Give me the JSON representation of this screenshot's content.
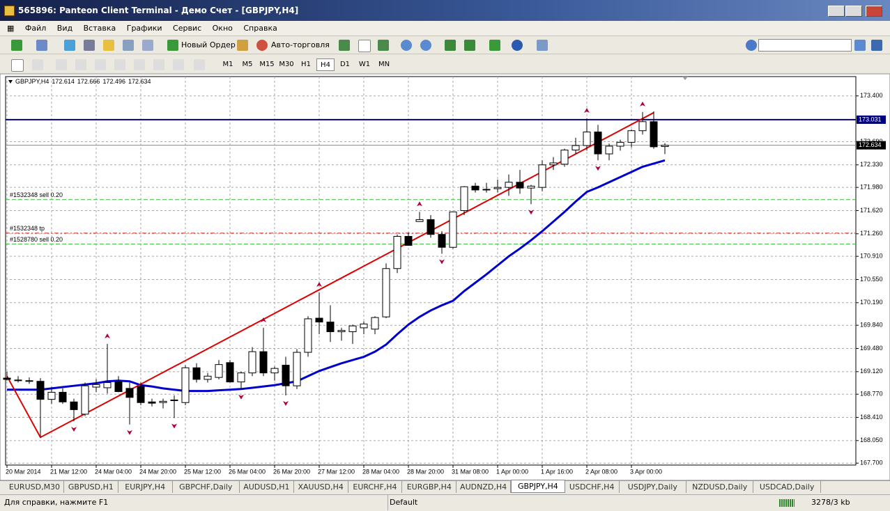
{
  "window": {
    "title": "565896: Panteon Client Terminal - Демо Счет - [GBPJPY,H4]"
  },
  "menu": [
    "Файл",
    "Вид",
    "Вставка",
    "Графики",
    "Сервис",
    "Окно",
    "Справка"
  ],
  "toolbar": {
    "new_order": "Новый Ордер",
    "autotrading": "Авто-торговля",
    "timeframes": [
      "M1",
      "M5",
      "M15",
      "M30",
      "H1",
      "H4",
      "D1",
      "W1",
      "MN"
    ],
    "active_timeframe": 5
  },
  "chart_data": {
    "type": "candlestick",
    "symbol": "GBPJPY,H4",
    "categories": [
      "20 Mar 2014",
      null,
      null,
      null,
      "21 Mar 12:00",
      null,
      null,
      null,
      "24 Mar 04:00",
      null,
      null,
      null,
      "24 Mar 20:00",
      null,
      null,
      null,
      "25 Mar 12:00",
      null,
      null,
      null,
      "26 Mar 04:00",
      null,
      null,
      null,
      "26 Mar 20:00",
      null,
      null,
      null,
      "27 Mar 12:00",
      null,
      null,
      null,
      "28 Mar 04:00",
      null,
      null,
      null,
      "28 Mar 20:00",
      null,
      null,
      null,
      "31 Mar 08:00",
      null,
      null,
      null,
      "1 Apr 00:00",
      null,
      null,
      null,
      "1 Apr 16:00",
      null,
      null,
      null,
      "2 Apr 08:00",
      null,
      null,
      null,
      "3 Apr 00:00",
      null,
      null,
      null
    ],
    "open": [
      169.02,
      168.99,
      168.98,
      168.97,
      168.69,
      168.8,
      168.65,
      168.46,
      168.88,
      168.87,
      168.96,
      168.86,
      168.89,
      168.65,
      168.64,
      168.67,
      168.64,
      169.18,
      169.0,
      169.03,
      169.26,
      168.96,
      169.1,
      169.43,
      169.1,
      169.22,
      168.9,
      169.42,
      169.95,
      169.89,
      169.74,
      169.74,
      169.8,
      169.78,
      169.97,
      170.72,
      171.22,
      171.45,
      171.48,
      171.25,
      171.05,
      171.62,
      172.0,
      171.94,
      171.96,
      171.98,
      172.06,
      171.97,
      171.98,
      172.33,
      172.34,
      172.56,
      172.63,
      172.84,
      172.5,
      172.62,
      172.68,
      172.86,
      173.0,
      172.614
    ],
    "high": [
      169.12,
      169.05,
      169.03,
      169.02,
      168.88,
      168.86,
      168.7,
      168.95,
      169.0,
      169.55,
      169.05,
      168.95,
      168.95,
      168.7,
      168.7,
      168.75,
      169.22,
      169.25,
      169.1,
      169.3,
      169.3,
      169.12,
      169.5,
      169.8,
      169.2,
      169.35,
      169.47,
      169.98,
      170.35,
      170.15,
      169.8,
      169.85,
      169.9,
      169.98,
      170.8,
      171.25,
      171.28,
      171.6,
      171.55,
      171.3,
      171.6,
      172.0,
      172.05,
      172.05,
      172.1,
      172.18,
      172.25,
      172.02,
      172.4,
      172.45,
      172.58,
      172.75,
      173.05,
      172.95,
      172.66,
      172.72,
      172.88,
      173.15,
      173.16,
      172.666
    ],
    "low": [
      168.98,
      168.95,
      168.93,
      168.1,
      168.62,
      168.62,
      168.35,
      168.43,
      168.8,
      168.78,
      168.8,
      168.3,
      168.6,
      168.58,
      168.55,
      168.4,
      168.6,
      168.95,
      168.95,
      169.0,
      168.95,
      168.85,
      169.05,
      169.05,
      168.98,
      168.75,
      168.85,
      169.35,
      169.7,
      169.58,
      169.6,
      169.55,
      169.7,
      169.7,
      169.95,
      170.65,
      171.08,
      171.45,
      171.2,
      170.95,
      171.03,
      171.55,
      171.9,
      171.9,
      171.9,
      171.85,
      171.88,
      171.72,
      171.92,
      172.25,
      172.3,
      172.5,
      172.55,
      172.4,
      172.4,
      172.55,
      172.6,
      172.8,
      172.58,
      172.496
    ],
    "close": [
      169.0,
      168.98,
      168.97,
      168.69,
      168.8,
      168.65,
      168.53,
      168.9,
      168.92,
      168.95,
      168.81,
      168.72,
      168.64,
      168.63,
      168.66,
      168.68,
      169.18,
      169.0,
      169.05,
      169.23,
      168.96,
      169.1,
      169.43,
      169.1,
      169.17,
      168.9,
      169.42,
      169.94,
      169.89,
      169.74,
      169.76,
      169.83,
      169.86,
      169.96,
      170.72,
      171.22,
      171.08,
      171.48,
      171.25,
      171.05,
      171.6,
      171.99,
      171.94,
      171.95,
      171.98,
      172.06,
      171.97,
      172.0,
      172.33,
      172.36,
      172.56,
      172.63,
      172.84,
      172.5,
      172.62,
      172.68,
      172.86,
      173.0,
      172.61,
      172.634
    ],
    "ma": {
      "color": "#0000cc",
      "values": [
        168.84,
        168.84,
        168.84,
        168.84,
        168.86,
        168.88,
        168.9,
        168.92,
        168.94,
        168.97,
        168.98,
        168.97,
        168.91,
        168.89,
        168.86,
        168.84,
        168.82,
        168.82,
        168.82,
        168.83,
        168.84,
        168.85,
        168.87,
        168.89,
        168.91,
        168.94,
        168.97,
        169.05,
        169.13,
        169.19,
        169.25,
        169.3,
        169.35,
        169.43,
        169.54,
        169.7,
        169.85,
        169.97,
        170.07,
        170.15,
        170.22,
        170.37,
        170.5,
        170.63,
        170.77,
        170.91,
        171.03,
        171.16,
        171.3,
        171.45,
        171.6,
        171.76,
        171.91,
        171.98,
        172.06,
        172.14,
        172.22,
        172.3,
        172.35,
        172.4
      ]
    },
    "lines": [
      {
        "color": "#dd0000",
        "x": [
          0,
          3,
          58
        ],
        "values": [
          169.05,
          168.1,
          173.14
        ]
      }
    ],
    "fractals_up": [
      9,
      23,
      28,
      37,
      52,
      57
    ],
    "fractals_down": [
      6,
      11,
      15,
      21,
      25,
      39,
      47,
      53
    ],
    "fractal_color": "#b0003a",
    "hline": {
      "value": 173.031,
      "color": "#000080"
    },
    "levels": [
      {
        "label": "#1532348 sell 0.20",
        "value": 171.79,
        "color": "#33bb33",
        "style": "dashed"
      },
      {
        "label": "#1532348 tp",
        "value": 171.27,
        "color": "#dd2222",
        "style": "dashdot"
      },
      {
        "label": "#1528780 sell 0.20",
        "value": 171.1,
        "color": "#33bb33",
        "style": "dashed"
      }
    ],
    "ylim": [
      167.67,
      173.7
    ],
    "yticks": [
      {
        "value": 173.4,
        "label": "173.400"
      },
      {
        "value": 172.69,
        "label": "172.690"
      },
      {
        "value": 172.33,
        "label": "172.330"
      },
      {
        "value": 171.98,
        "label": "171.980"
      },
      {
        "value": 171.62,
        "label": "171.620"
      },
      {
        "value": 171.26,
        "label": "171.260"
      },
      {
        "value": 170.91,
        "label": "170.910"
      },
      {
        "value": 170.55,
        "label": "170.550"
      },
      {
        "value": 170.19,
        "label": "170.190"
      },
      {
        "value": 169.84,
        "label": "169.840"
      },
      {
        "value": 169.48,
        "label": "169.480"
      },
      {
        "value": 169.12,
        "label": "169.120"
      },
      {
        "value": 168.77,
        "label": "168.770"
      },
      {
        "value": 168.41,
        "label": "168.410"
      },
      {
        "value": 168.05,
        "label": "168.050"
      },
      {
        "value": 167.7,
        "label": "167.700"
      }
    ],
    "grid": true
  },
  "tabs": [
    "EURUSD,M30",
    "GBPUSD,H1",
    "EURJPY,H4",
    "GBPCHF,Daily",
    "AUDUSD,H1",
    "XAUUSD,H4",
    "EURCHF,H4",
    "EURGBP,H4",
    "AUDNZD,H4",
    "GBPJPY,H4",
    "USDCHF,H4",
    "USDJPY,Daily",
    "NZDUSD,Daily",
    "USDCAD,Daily"
  ],
  "active_tab": 9,
  "status": {
    "help": "Для справки, нажмите F1",
    "profile": "Default",
    "traffic": "3278/3 kb"
  }
}
